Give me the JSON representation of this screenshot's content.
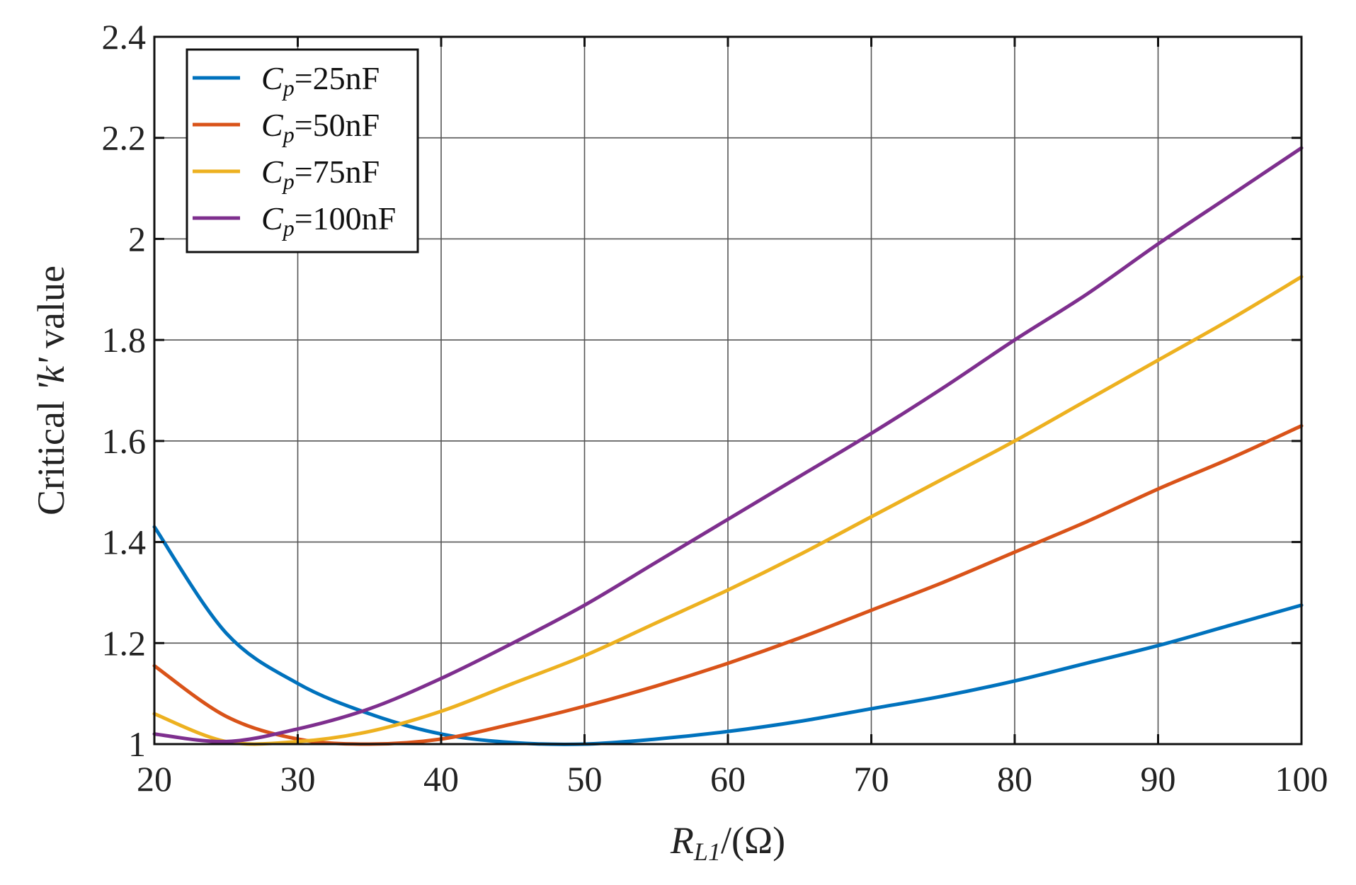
{
  "chart_data": {
    "type": "line",
    "title": "",
    "xlabel": {
      "symbol": "R",
      "subscript": "L1",
      "unit": "/(Ω)"
    },
    "ylabel": {
      "prefix": "Critical ",
      "symbol": "'k'",
      "suffix": " value"
    },
    "xlim": [
      20,
      100
    ],
    "ylim": [
      1,
      2.4
    ],
    "xticks": [
      20,
      30,
      40,
      50,
      60,
      70,
      80,
      90,
      100
    ],
    "yticks": [
      1,
      1.2,
      1.4,
      1.6,
      1.8,
      2,
      2.2,
      2.4
    ],
    "xtick_labels": [
      "20",
      "30",
      "40",
      "50",
      "60",
      "70",
      "80",
      "90",
      "100"
    ],
    "ytick_labels": [
      "1",
      "1.2",
      "1.4",
      "1.6",
      "1.8",
      "2",
      "2.2",
      "2.4"
    ],
    "grid": true,
    "legend_position": "top-left",
    "x": [
      20,
      25,
      30,
      35,
      40,
      45,
      50,
      55,
      60,
      65,
      70,
      75,
      80,
      85,
      90,
      95,
      100
    ],
    "series": [
      {
        "name": "Cp=25nF",
        "symbol": "C",
        "subscript": "p",
        "value": "=25nF",
        "color": "#0072BD",
        "values": [
          1.43,
          1.22,
          1.12,
          1.06,
          1.02,
          1.003,
          1.0,
          1.01,
          1.025,
          1.045,
          1.07,
          1.095,
          1.125,
          1.16,
          1.195,
          1.235,
          1.275
        ]
      },
      {
        "name": "Cp=50nF",
        "symbol": "C",
        "subscript": "p",
        "value": "=50nF",
        "color": "#D95319",
        "values": [
          1.155,
          1.055,
          1.01,
          1.0,
          1.01,
          1.04,
          1.075,
          1.115,
          1.16,
          1.21,
          1.265,
          1.32,
          1.38,
          1.44,
          1.505,
          1.565,
          1.63
        ]
      },
      {
        "name": "Cp=75nF",
        "symbol": "C",
        "subscript": "p",
        "value": "=75nF",
        "color": "#EDB120",
        "values": [
          1.06,
          1.005,
          1.005,
          1.025,
          1.065,
          1.12,
          1.175,
          1.24,
          1.305,
          1.375,
          1.45,
          1.525,
          1.6,
          1.68,
          1.76,
          1.84,
          1.925
        ]
      },
      {
        "name": "Cp=100nF",
        "symbol": "C",
        "subscript": "p",
        "value": "=100nF",
        "color": "#7E2F8E",
        "values": [
          1.02,
          1.005,
          1.03,
          1.07,
          1.13,
          1.2,
          1.275,
          1.36,
          1.445,
          1.53,
          1.615,
          1.705,
          1.8,
          1.89,
          1.99,
          2.085,
          2.18
        ]
      }
    ]
  }
}
